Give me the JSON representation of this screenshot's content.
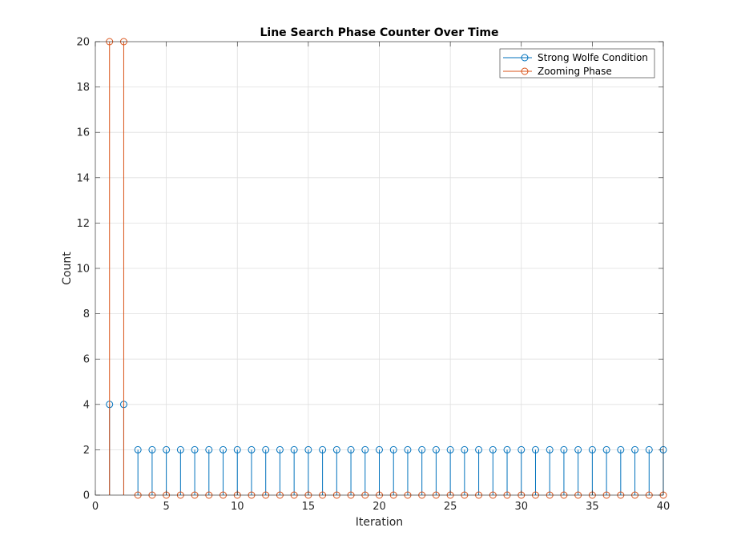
{
  "chart_data": {
    "type": "stem",
    "title": "Line Search Phase Counter Over Time",
    "xlabel": "Iteration",
    "ylabel": "Count",
    "xlim": [
      0,
      40
    ],
    "ylim": [
      0,
      20
    ],
    "xticks": [
      0,
      5,
      10,
      15,
      20,
      25,
      30,
      35,
      40
    ],
    "yticks": [
      0,
      2,
      4,
      6,
      8,
      10,
      12,
      14,
      16,
      18,
      20
    ],
    "grid": true,
    "legend_position": "top-right",
    "x": [
      1,
      2,
      3,
      4,
      5,
      6,
      7,
      8,
      9,
      10,
      11,
      12,
      13,
      14,
      15,
      16,
      17,
      18,
      19,
      20,
      21,
      22,
      23,
      24,
      25,
      26,
      27,
      28,
      29,
      30,
      31,
      32,
      33,
      34,
      35,
      36,
      37,
      38,
      39,
      40
    ],
    "series": [
      {
        "name": "Strong Wolfe Condition",
        "color": "#0072BD",
        "values": [
          4,
          4,
          2,
          2,
          2,
          2,
          2,
          2,
          2,
          2,
          2,
          2,
          2,
          2,
          2,
          2,
          2,
          2,
          2,
          2,
          2,
          2,
          2,
          2,
          2,
          2,
          2,
          2,
          2,
          2,
          2,
          2,
          2,
          2,
          2,
          2,
          2,
          2,
          2,
          2
        ]
      },
      {
        "name": "Zooming Phase",
        "color": "#D95319",
        "values": [
          20,
          20,
          0,
          0,
          0,
          0,
          0,
          0,
          0,
          0,
          0,
          0,
          0,
          0,
          0,
          0,
          0,
          0,
          0,
          0,
          0,
          0,
          0,
          0,
          0,
          0,
          0,
          0,
          0,
          0,
          0,
          0,
          0,
          0,
          0,
          0,
          0,
          0,
          0,
          0
        ]
      }
    ]
  }
}
